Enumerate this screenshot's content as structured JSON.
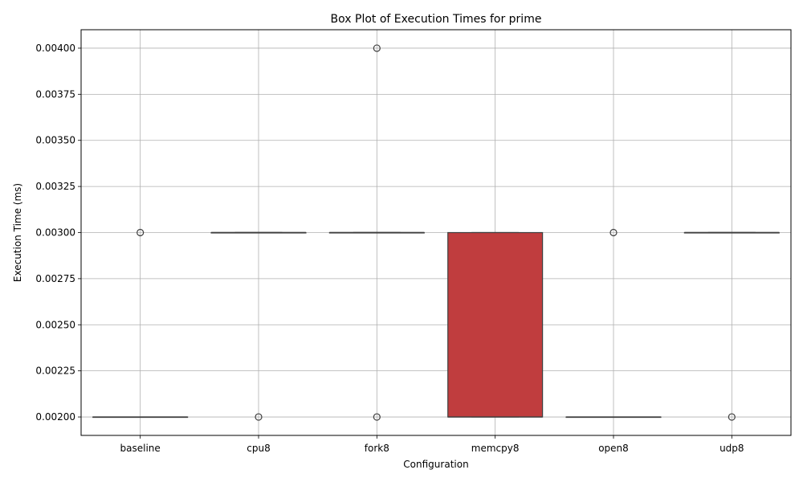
{
  "chart_data": {
    "type": "box",
    "title": "Box Plot of Execution Times for prime",
    "xlabel": "Configuration",
    "ylabel": "Execution Time (ms)",
    "ylim": [
      0.0019,
      0.0041
    ],
    "grid": true,
    "yticks": [
      0.002,
      0.00225,
      0.0025,
      0.00275,
      0.003,
      0.00325,
      0.0035,
      0.00375,
      0.004
    ],
    "ytick_labels": [
      "0.00200",
      "0.00225",
      "0.00250",
      "0.00275",
      "0.00300",
      "0.00325",
      "0.00350",
      "0.00375",
      "0.00400"
    ],
    "categories": [
      "baseline",
      "cpu8",
      "fork8",
      "memcpy8",
      "open8",
      "udp8"
    ],
    "boxes": [
      {
        "category": "baseline",
        "q1": 0.002,
        "median": 0.002,
        "q3": 0.002,
        "whisker_low": 0.002,
        "whisker_high": 0.002,
        "outliers": [
          0.003
        ],
        "color": "#1f77b4"
      },
      {
        "category": "cpu8",
        "q1": 0.003,
        "median": 0.003,
        "q3": 0.003,
        "whisker_low": 0.003,
        "whisker_high": 0.003,
        "outliers": [
          0.002
        ],
        "color": "#ff7f0e"
      },
      {
        "category": "fork8",
        "q1": 0.003,
        "median": 0.003,
        "q3": 0.003,
        "whisker_low": 0.003,
        "whisker_high": 0.003,
        "outliers": [
          0.002,
          0.004
        ],
        "color": "#2ca02c"
      },
      {
        "category": "memcpy8",
        "q1": 0.002,
        "median": 0.002,
        "q3": 0.003,
        "whisker_low": 0.002,
        "whisker_high": 0.003,
        "outliers": [],
        "color": "#c03d3e"
      },
      {
        "category": "open8",
        "q1": 0.002,
        "median": 0.002,
        "q3": 0.002,
        "whisker_low": 0.002,
        "whisker_high": 0.002,
        "outliers": [
          0.003
        ],
        "color": "#9467bd"
      },
      {
        "category": "udp8",
        "q1": 0.003,
        "median": 0.003,
        "q3": 0.003,
        "whisker_low": 0.003,
        "whisker_high": 0.003,
        "outliers": [
          0.002
        ],
        "color": "#8c564b"
      }
    ]
  }
}
